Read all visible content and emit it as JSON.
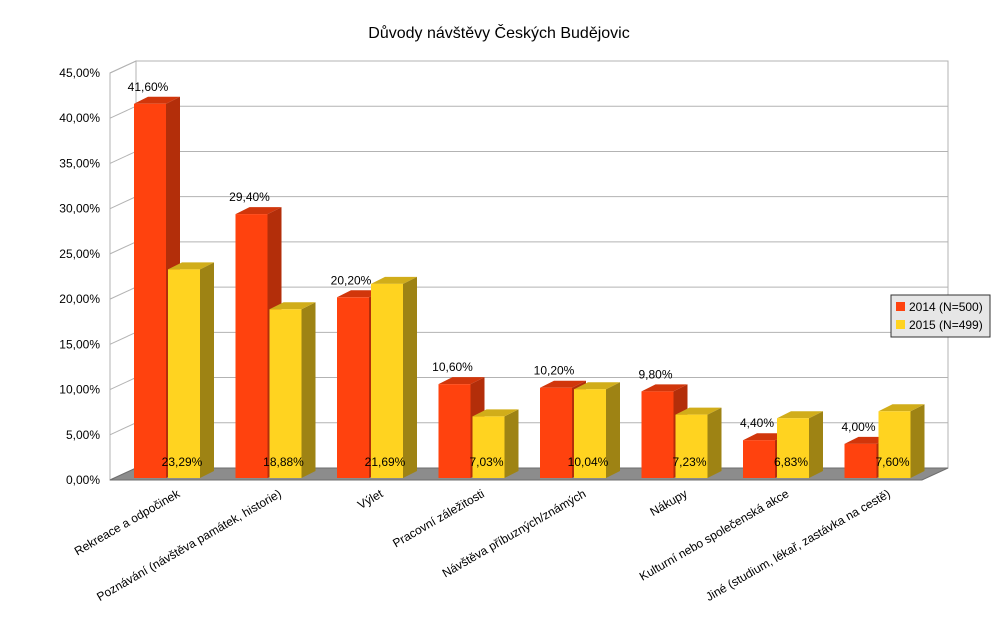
{
  "chart_data": {
    "type": "bar",
    "title": "Důvody návštěvy Českých Budějovic",
    "xlabel": "",
    "ylabel": "",
    "ylim": [
      0,
      45
    ],
    "yticks": [
      "0,00%",
      "5,00%",
      "10,00%",
      "15,00%",
      "20,00%",
      "25,00%",
      "30,00%",
      "35,00%",
      "40,00%",
      "45,00%"
    ],
    "categories": [
      "Rekreace a odpočinek",
      "Poznávání (návštěva památek, historie)",
      "Výlet",
      "Pracovní záležitosti",
      "Návštěva příbuzných/známých",
      "Nákupy",
      "Kulturní nebo společenská akce",
      "Jiné (studium, lékař, zastávka na cestě)"
    ],
    "series": [
      {
        "name": "2014 (N=500)",
        "color": "#ff420e",
        "values": [
          41.6,
          29.4,
          20.2,
          10.6,
          10.2,
          9.8,
          4.4,
          4.0
        ],
        "labels": [
          "41,60%",
          "29,40%",
          "20,20%",
          "10,60%",
          "10,20%",
          "9,80%",
          "4,40%",
          "4,00%"
        ]
      },
      {
        "name": "2015 (N=499)",
        "color": "#ffd320",
        "values": [
          23.29,
          18.88,
          21.69,
          7.03,
          10.04,
          7.23,
          6.83,
          7.6
        ],
        "labels": [
          "23,29%",
          "18,88%",
          "21,69%",
          "7,03%",
          "10,04%",
          "7,23%",
          "6,83%",
          "7,60%"
        ]
      }
    ],
    "grid": true,
    "legend": "right"
  }
}
